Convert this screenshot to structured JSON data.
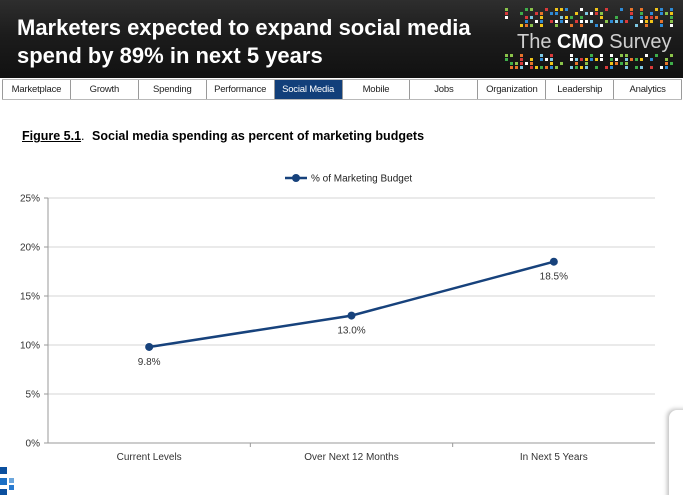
{
  "header": {
    "title": "Marketers expected to expand social media spend by 89% in next 5 years",
    "logo": {
      "text_prefix": "The",
      "text_bold": "CMO",
      "text_suffix": "Survey"
    }
  },
  "nav": {
    "items": [
      {
        "label": "Marketplace",
        "active": false
      },
      {
        "label": "Growth",
        "active": false
      },
      {
        "label": "Spending",
        "active": false
      },
      {
        "label": "Performance",
        "active": false
      },
      {
        "label": "Social Media",
        "active": true
      },
      {
        "label": "Mobile",
        "active": false
      },
      {
        "label": "Jobs",
        "active": false
      },
      {
        "label": "Organization",
        "active": false
      },
      {
        "label": "Leadership",
        "active": false
      },
      {
        "label": "Analytics",
        "active": false
      }
    ],
    "active_color": "#123f7a"
  },
  "figure": {
    "number": "Figure 5.1",
    "title": "Social media spending as percent of marketing budgets"
  },
  "chart_data": {
    "type": "line",
    "categories": [
      "Current Levels",
      "Over Next 12 Months",
      "In Next 5 Years"
    ],
    "series": [
      {
        "name": "% of Marketing Budget",
        "values": [
          9.8,
          13.0,
          18.5
        ],
        "color": "#17427c"
      }
    ],
    "data_labels": [
      "9.8%",
      "13.0%",
      "18.5%"
    ],
    "ylim": [
      0,
      25
    ],
    "yticks": [
      0,
      5,
      10,
      15,
      20,
      25
    ],
    "ytick_labels": [
      "0%",
      "5%",
      "10%",
      "15%",
      "20%",
      "25%"
    ],
    "xlabel": "",
    "ylabel": "",
    "grid": true,
    "legend_position": "top-center"
  },
  "colors": {
    "header_bg": "#1c1c1c",
    "gridline": "#d6d6d6"
  }
}
